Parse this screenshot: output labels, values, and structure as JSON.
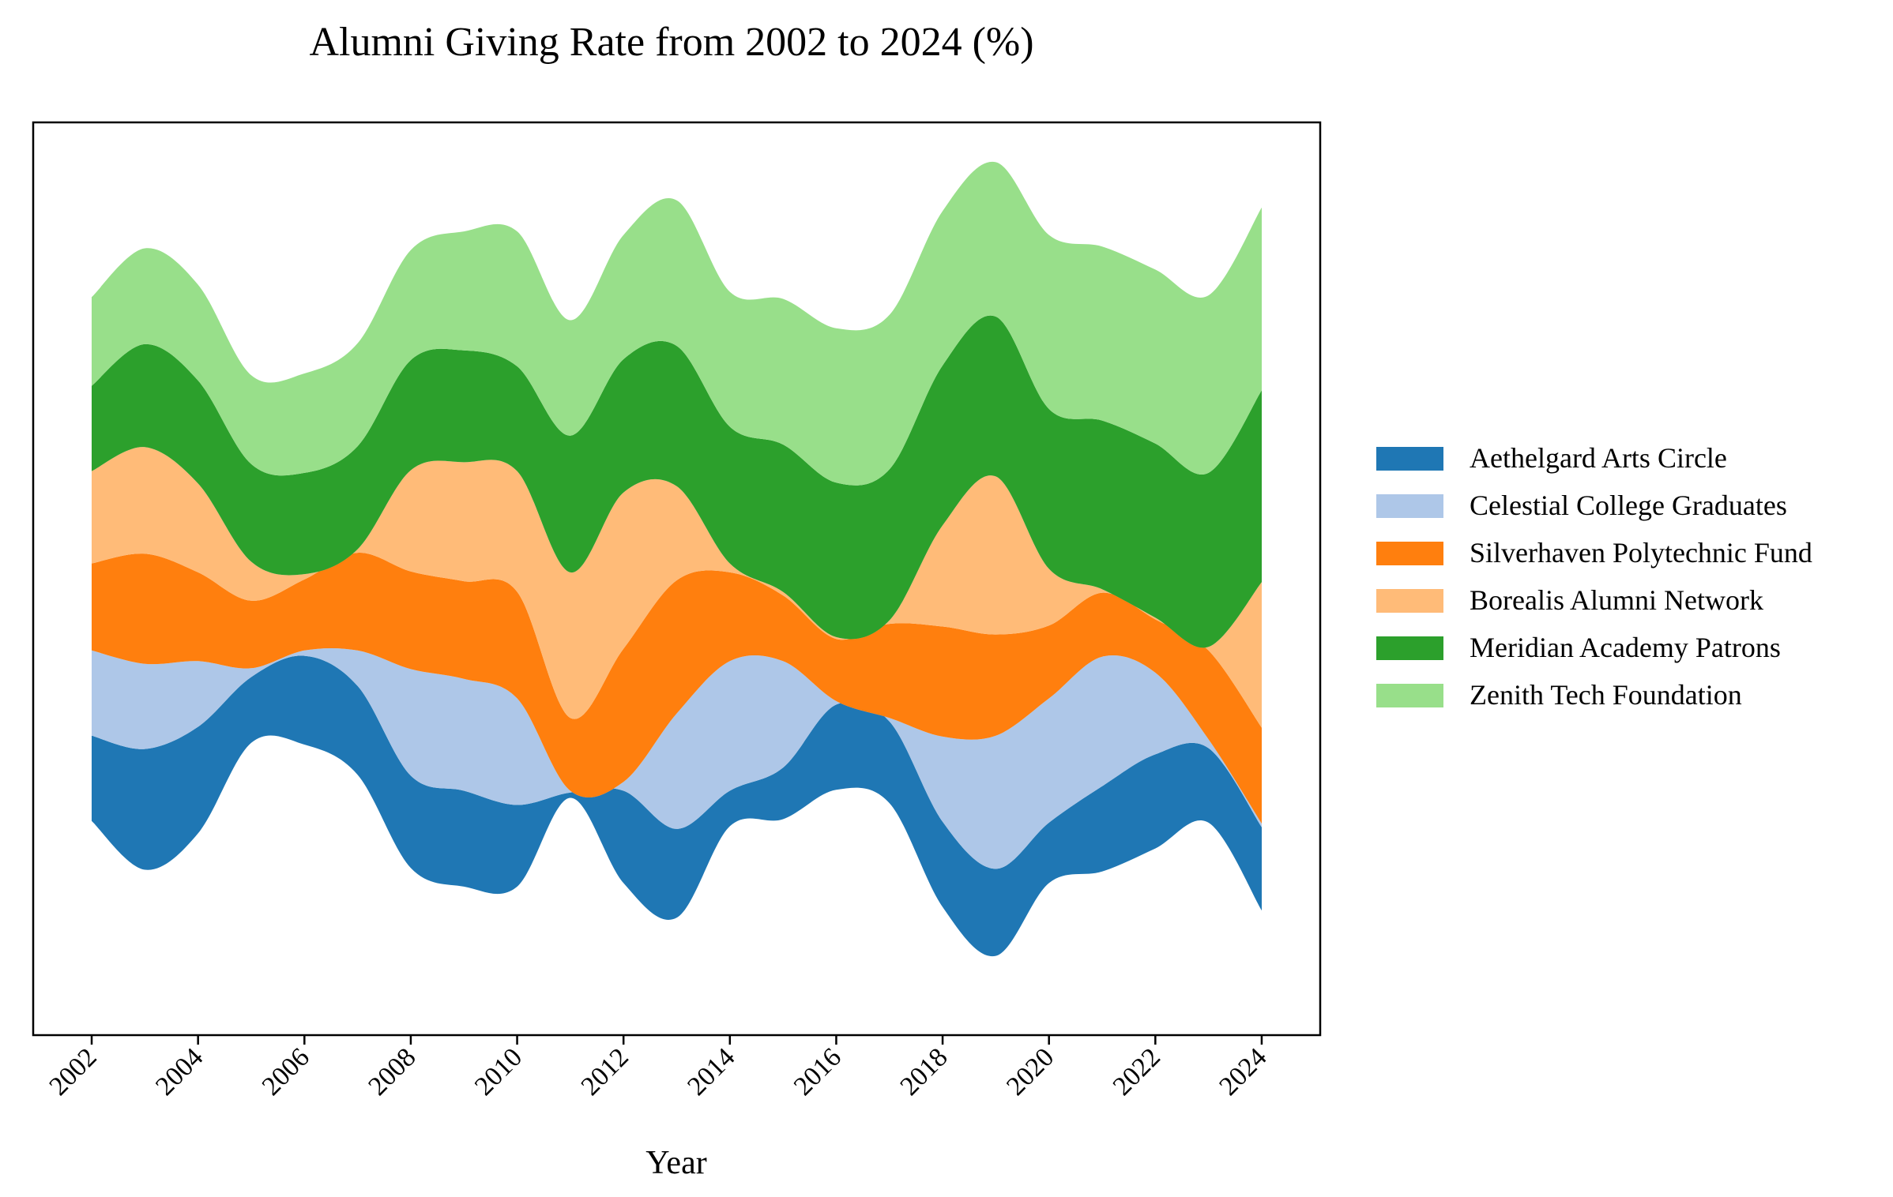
{
  "chart_data": {
    "type": "area",
    "subtype": "streamgraph",
    "title": "Alumni Giving Rate from 2002 to 2024 (%)",
    "xlabel": "Year",
    "ylabel": "",
    "xlim": [
      2000.9,
      2025.1
    ],
    "x_ticks": [
      2002,
      2004,
      2006,
      2008,
      2010,
      2012,
      2014,
      2016,
      2018,
      2020,
      2022,
      2024
    ],
    "x_tick_labels": [
      "2002",
      "2004",
      "2006",
      "2008",
      "2010",
      "2012",
      "2014",
      "2016",
      "2018",
      "2020",
      "2022",
      "2024"
    ],
    "y_ticks_visible": false,
    "grid": false,
    "legend_position": "outside-right",
    "x": [
      2002,
      2003,
      2004,
      2005,
      2006,
      2007,
      2008,
      2009,
      2010,
      2011,
      2012,
      2013,
      2014,
      2015,
      2016,
      2017,
      2018,
      2019,
      2020,
      2021,
      2022,
      2023,
      2024
    ],
    "series": [
      {
        "name": "Aethelgard Arts Circle",
        "color": "#1f77b4",
        "values": [
          4.8,
          6.8,
          6.0,
          3.7,
          5.0,
          5.0,
          5.2,
          5.4,
          4.6,
          0.3,
          5.2,
          5.0,
          2.0,
          2.9,
          4.8,
          4.6,
          4.8,
          4.9,
          3.4,
          4.8,
          5.3,
          4.2,
          4.7
        ]
      },
      {
        "name": "Celestial College Graduates",
        "color": "#aec7e8",
        "values": [
          4.8,
          4.8,
          3.7,
          0.5,
          0.3,
          2.0,
          6.0,
          6.3,
          6.0,
          0.1,
          0.5,
          6.5,
          7.3,
          6.0,
          0.2,
          0.2,
          4.8,
          7.5,
          7.0,
          7.3,
          4.6,
          0.5,
          0.2
        ]
      },
      {
        "name": "Silverhaven Polytechnic Fund",
        "color": "#ff7f0e",
        "values": [
          4.9,
          6.2,
          5.0,
          3.8,
          4.0,
          5.5,
          5.5,
          5.5,
          6.0,
          4.1,
          7.5,
          7.5,
          5.0,
          3.7,
          3.5,
          5.3,
          6.2,
          5.7,
          4.1,
          3.6,
          3.0,
          5.0,
          5.4
        ]
      },
      {
        "name": "Borealis Alumni Network",
        "color": "#ffbb78",
        "values": [
          5.2,
          6.0,
          5.0,
          2.2,
          0.3,
          0.2,
          5.7,
          6.7,
          6.8,
          8.2,
          8.8,
          5.3,
          0.5,
          0.2,
          0.1,
          0.2,
          5.7,
          8.9,
          3.2,
          0.2,
          0.1,
          0.2,
          8.2
        ]
      },
      {
        "name": "Meridian Academy Patrons",
        "color": "#2ca02c",
        "values": [
          4.8,
          5.8,
          5.8,
          5.5,
          5.7,
          5.8,
          6.2,
          6.3,
          5.9,
          7.7,
          7.5,
          7.9,
          7.7,
          8.3,
          8.7,
          8.5,
          9.0,
          9.0,
          9.0,
          9.5,
          9.8,
          9.8,
          10.8
        ]
      },
      {
        "name": "Zenith Tech Foundation",
        "color": "#98df8a",
        "values": [
          5.0,
          5.4,
          5.4,
          5.0,
          5.6,
          5.8,
          6.2,
          6.7,
          7.6,
          6.5,
          7.0,
          8.2,
          7.6,
          8.2,
          8.7,
          8.7,
          8.7,
          8.7,
          9.8,
          9.8,
          9.8,
          10.0,
          10.3
        ]
      }
    ]
  }
}
